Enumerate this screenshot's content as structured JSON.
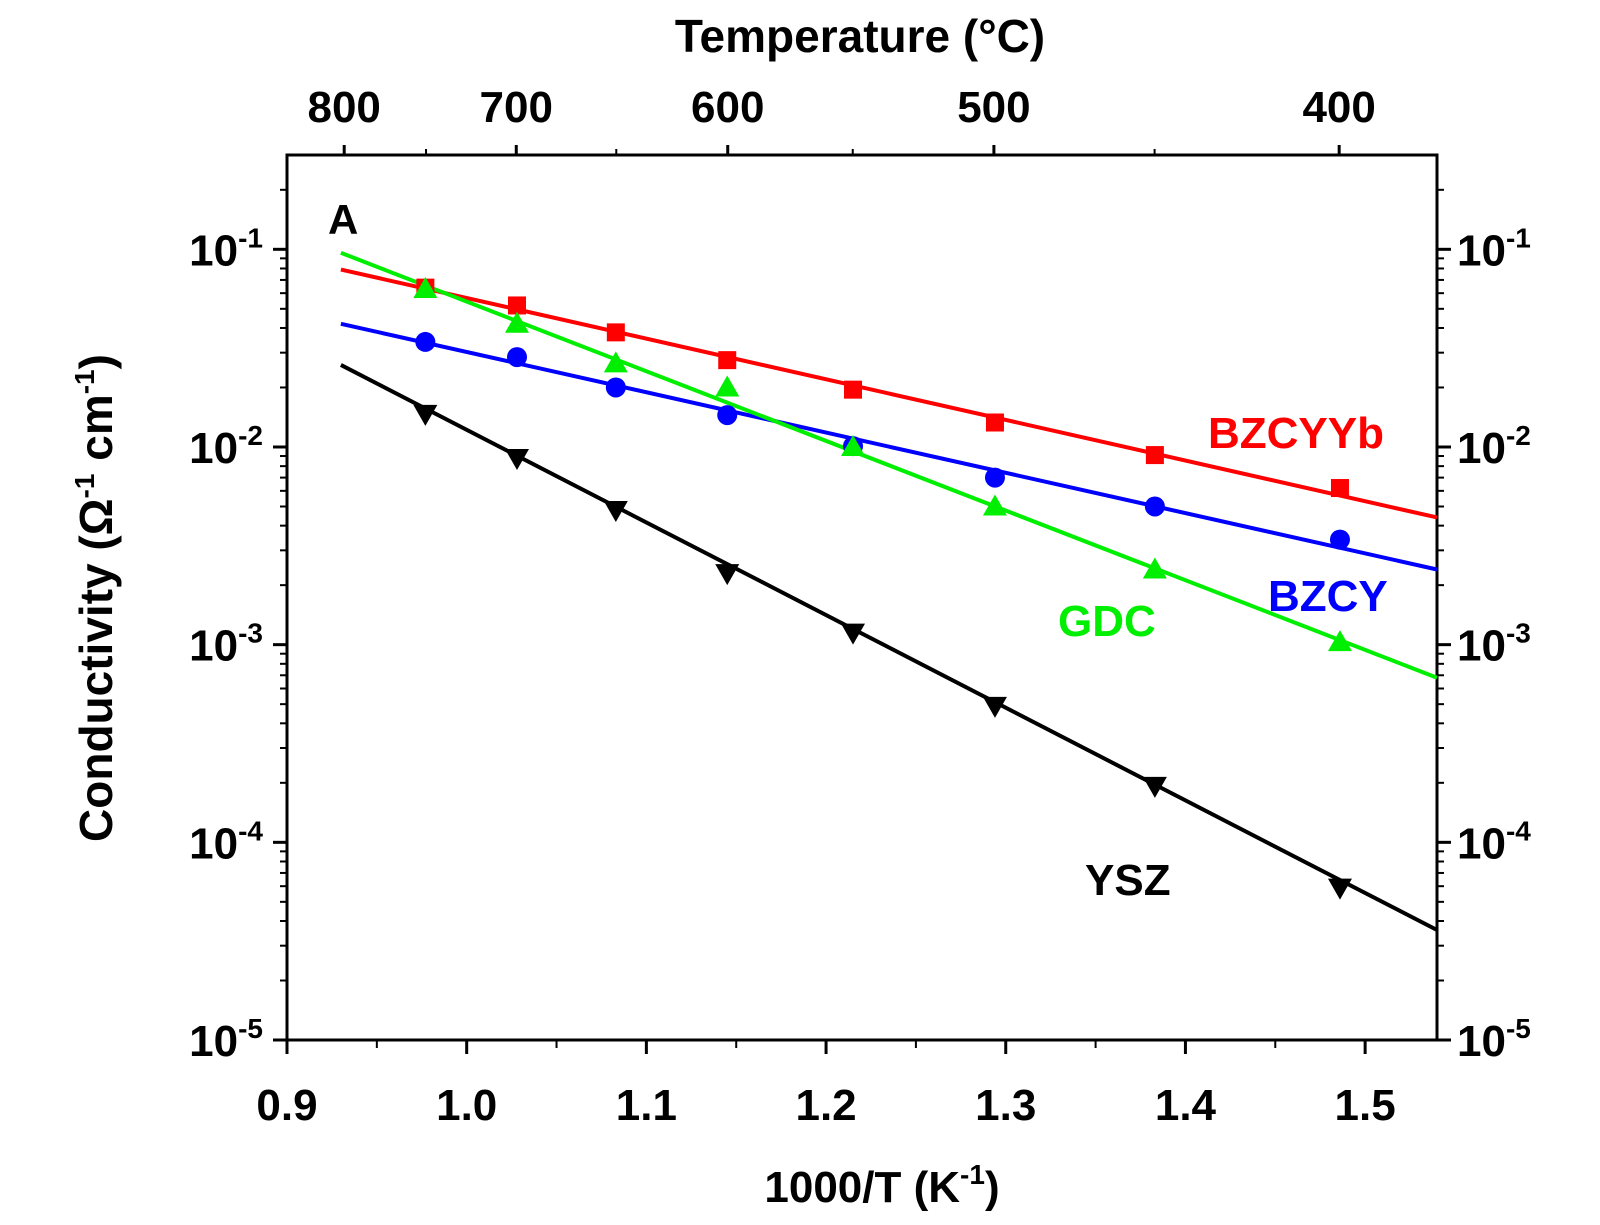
{
  "chart_data": {
    "type": "scatter",
    "panel_label": "A",
    "top_axis": {
      "label": "Temperature (°C)",
      "ticks": [
        "800",
        "700",
        "600",
        "500",
        "400"
      ],
      "tick_celsius": [
        800,
        700,
        600,
        500,
        400
      ]
    },
    "x_axis": {
      "label": "1000/T (K",
      "label_sup": "-1",
      "label_end": ")",
      "range": [
        0.9,
        1.54
      ],
      "ticks": [
        "0.9",
        "1.0",
        "1.1",
        "1.2",
        "1.3",
        "1.4",
        "1.5"
      ],
      "tick_values": [
        0.9,
        1.0,
        1.1,
        1.2,
        1.3,
        1.4,
        1.5
      ]
    },
    "y_axis": {
      "label_main": "Conductivity",
      "label_unit_start": "(Ω",
      "label_sup1": "-1",
      "label_unit_mid": " cm",
      "label_sup2": "-1",
      "label_unit_end": ")",
      "scale": "log",
      "range": [
        1e-05,
        0.3
      ],
      "tick_base": "10",
      "tick_exponents": [
        "-1",
        "-2",
        "-3",
        "-4",
        "-5"
      ],
      "tick_values": [
        0.1,
        0.01,
        0.001,
        0.0001,
        1e-05
      ]
    },
    "series": [
      {
        "name": "BZCYYb",
        "color": "#ff0000",
        "marker": "square",
        "x": [
          0.977,
          1.028,
          1.083,
          1.145,
          1.215,
          1.294,
          1.383,
          1.486
        ],
        "y": [
          0.064,
          0.052,
          0.038,
          0.0275,
          0.0195,
          0.0133,
          0.0091,
          0.0062
        ],
        "fit": {
          "x": [
            0.93,
            1.54
          ],
          "y": [
            0.079,
            0.0044
          ]
        }
      },
      {
        "name": "BZCY",
        "color": "#0000ff",
        "marker": "circle",
        "x": [
          0.977,
          1.028,
          1.083,
          1.145,
          1.215,
          1.294,
          1.383,
          1.486
        ],
        "y": [
          0.034,
          0.0285,
          0.02,
          0.0145,
          0.0101,
          0.007,
          0.005,
          0.0034
        ],
        "fit": {
          "x": [
            0.93,
            1.54
          ],
          "y": [
            0.042,
            0.0024
          ]
        }
      },
      {
        "name": "GDC",
        "color": "#00ee00",
        "marker": "triangle-up",
        "x": [
          0.977,
          1.028,
          1.083,
          1.145,
          1.215,
          1.294,
          1.383,
          1.486
        ],
        "y": [
          0.063,
          0.042,
          0.0265,
          0.02,
          0.01,
          0.005,
          0.0024,
          0.00103
        ],
        "fit": {
          "x": [
            0.93,
            1.54
          ],
          "y": [
            0.096,
            0.00068
          ]
        }
      },
      {
        "name": "YSZ",
        "color": "#000000",
        "marker": "triangle-down",
        "x": [
          0.977,
          1.028,
          1.083,
          1.145,
          1.215,
          1.294,
          1.383,
          1.486
        ],
        "y": [
          0.0147,
          0.0088,
          0.0048,
          0.0023,
          0.00115,
          0.00049,
          0.000193,
          5.9e-05
        ],
        "fit": {
          "x": [
            0.93,
            1.54
          ],
          "y": [
            0.026,
            3.6e-05
          ]
        }
      }
    ],
    "right_axis": {
      "tick_base": "10",
      "tick_exponents": [
        "-1",
        "-2",
        "-3",
        "-4",
        "-5"
      ]
    }
  }
}
